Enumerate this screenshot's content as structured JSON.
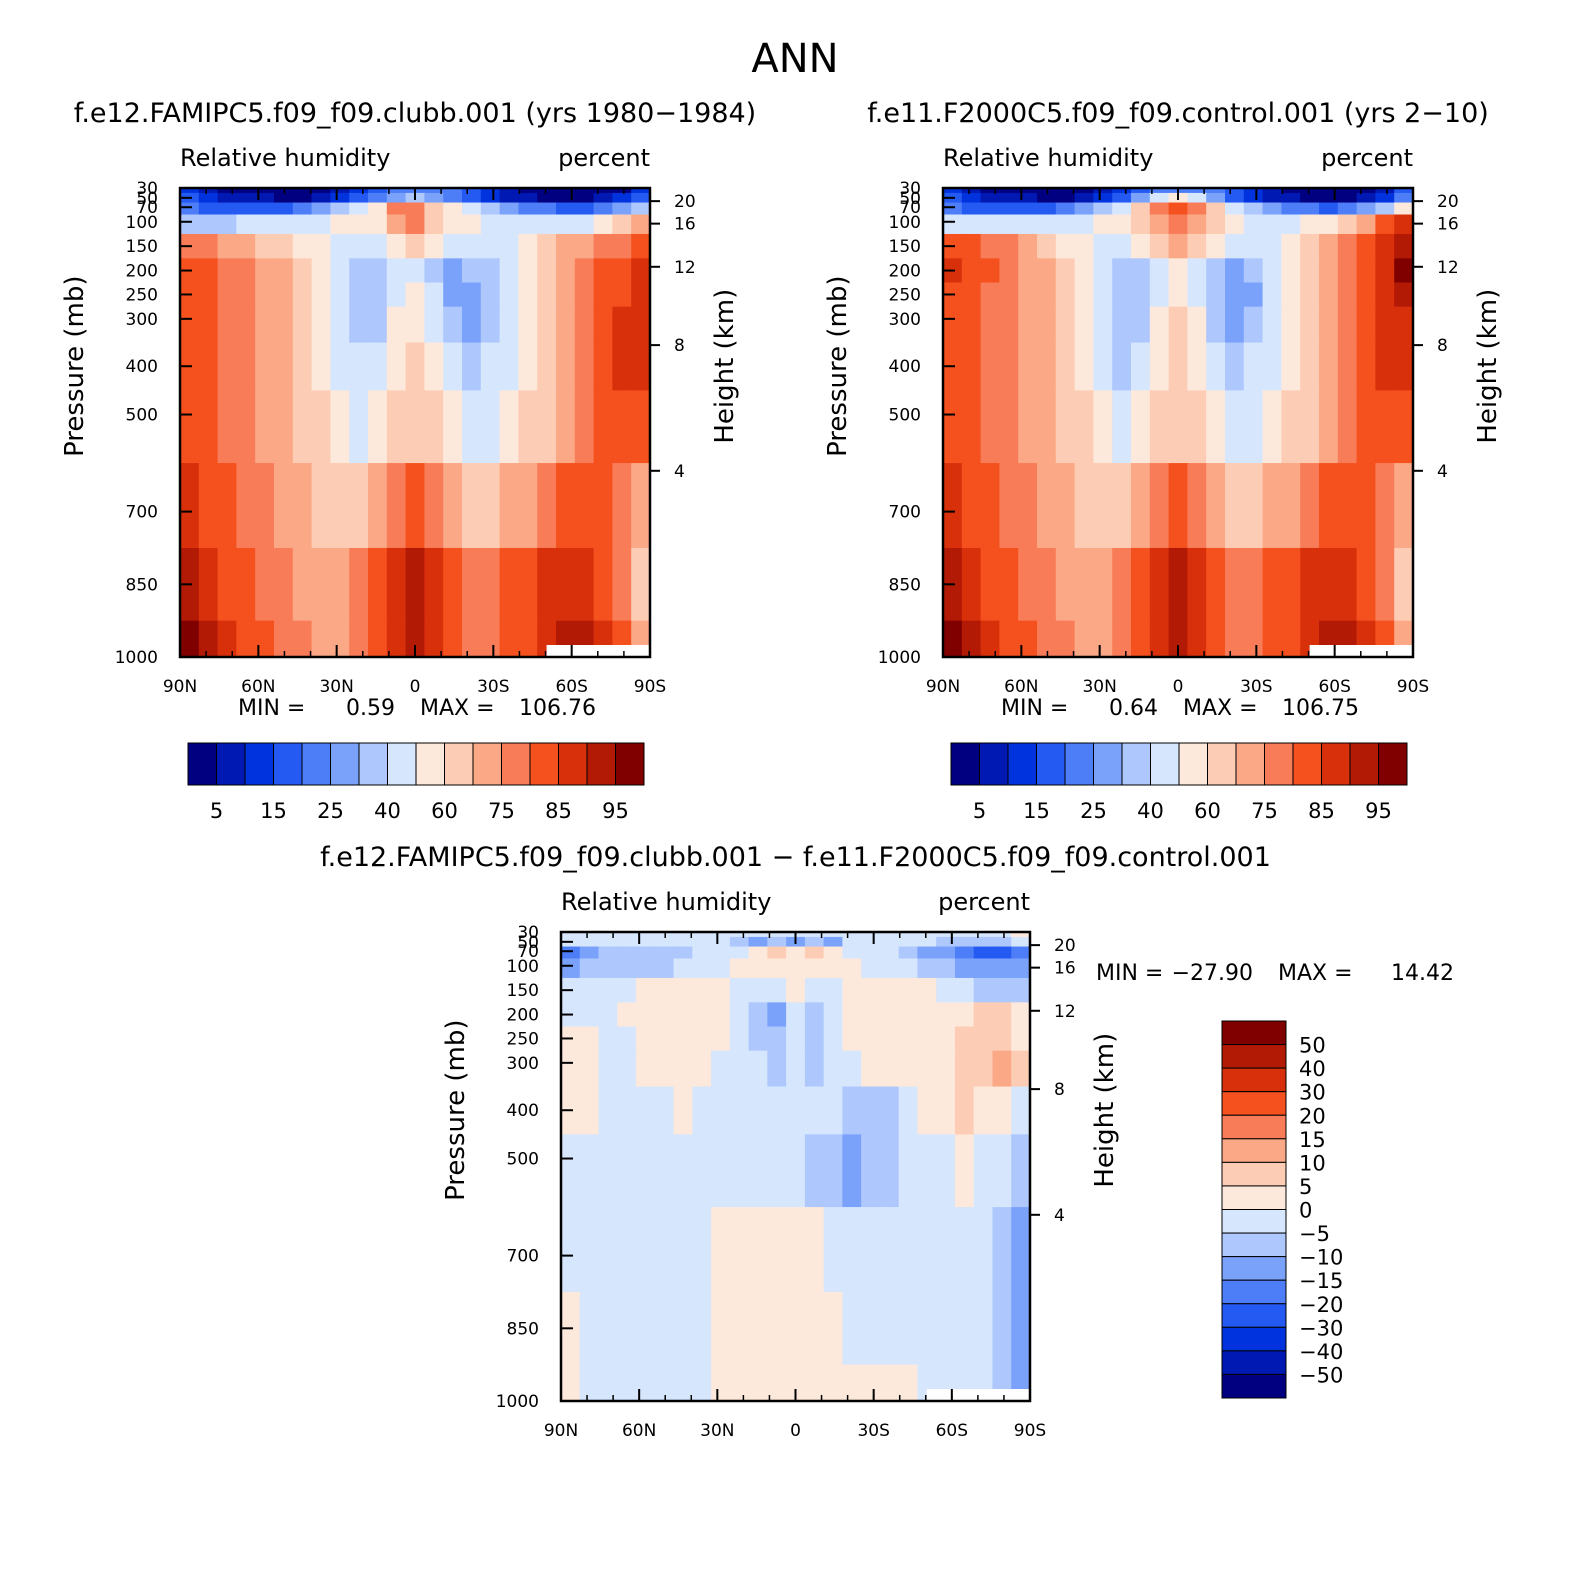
{
  "figure_title": "ANN",
  "colors": {
    "rh_scale": [
      "#000080",
      "#0019b3",
      "#0033dd",
      "#2459f2",
      "#4d7ef8",
      "#7aa2fb",
      "#aec7fd",
      "#d6e6fd",
      "#fde9dc",
      "#fccdb4",
      "#fba886",
      "#f87c58",
      "#f4511e",
      "#d9300c",
      "#b31a06",
      "#800000"
    ],
    "diff_scale": [
      "#000080",
      "#0019b3",
      "#0033dd",
      "#2459f2",
      "#4d7ef8",
      "#7aa2fb",
      "#aec7fd",
      "#d6e6fd",
      "#fde9dc",
      "#fccdb4",
      "#fba886",
      "#f87c58",
      "#f4511e",
      "#d9300c",
      "#b31a06",
      "#800000"
    ]
  },
  "chart_data": [
    {
      "id": "panel-clubb",
      "type": "heatmap",
      "title": "f.e12.FAMIPC5.f09_f09.clubb.001 (yrs 1980−1984)",
      "left_subtitle": "Relative humidity",
      "right_subtitle": "percent",
      "ylabel": "Pressure (mb)",
      "right_label": "Height (km)",
      "x_ticks": [
        "90N",
        "60N",
        "30N",
        "0",
        "30S",
        "60S",
        "90S"
      ],
      "y_ticks": [
        "30",
        "50",
        "70",
        "100",
        "150",
        "200",
        "250",
        "300",
        "400",
        "500",
        "700",
        "850",
        "1000"
      ],
      "height_ticks": [
        "20",
        "16",
        "12",
        "8",
        "4"
      ],
      "min_label": "MIN =",
      "min_value": "0.59",
      "max_label": "MAX =",
      "max_value": "106.76",
      "colorbar_labels": [
        "5",
        "15",
        "25",
        "40",
        "60",
        "75",
        "85",
        "95"
      ],
      "field": [
        [
          2,
          1,
          0,
          0,
          0,
          0,
          0,
          0,
          1,
          2,
          3,
          4,
          4,
          4,
          4,
          3,
          2,
          1,
          0,
          0,
          0,
          0,
          0,
          0,
          2
        ],
        [
          3,
          2,
          1,
          1,
          1,
          0,
          0,
          1,
          2,
          3,
          4,
          5,
          6,
          5,
          4,
          3,
          2,
          1,
          1,
          0,
          0,
          0,
          1,
          2,
          3
        ],
        [
          4,
          3,
          3,
          3,
          3,
          3,
          4,
          5,
          6,
          7,
          8,
          11,
          11,
          9,
          8,
          7,
          6,
          5,
          4,
          4,
          3,
          3,
          4,
          5,
          6
        ],
        [
          6,
          6,
          6,
          7,
          7,
          7,
          7,
          7,
          8,
          8,
          8,
          10,
          11,
          9,
          8,
          8,
          7,
          7,
          7,
          7,
          7,
          7,
          8,
          9,
          10
        ],
        [
          11,
          11,
          10,
          10,
          9,
          9,
          8,
          8,
          7,
          7,
          7,
          8,
          9,
          8,
          7,
          7,
          7,
          7,
          8,
          9,
          10,
          10,
          11,
          11,
          12
        ],
        [
          12,
          12,
          11,
          11,
          10,
          10,
          9,
          8,
          7,
          6,
          6,
          7,
          7,
          6,
          5,
          6,
          6,
          7,
          8,
          9,
          10,
          11,
          12,
          12,
          13
        ],
        [
          12,
          12,
          11,
          11,
          10,
          10,
          9,
          8,
          7,
          6,
          6,
          7,
          8,
          7,
          5,
          5,
          6,
          7,
          8,
          9,
          10,
          11,
          12,
          12,
          13
        ],
        [
          12,
          12,
          11,
          11,
          10,
          10,
          9,
          8,
          7,
          6,
          6,
          8,
          8,
          7,
          6,
          5,
          6,
          7,
          8,
          9,
          10,
          11,
          12,
          13,
          13
        ],
        [
          12,
          12,
          11,
          11,
          10,
          10,
          9,
          8,
          7,
          7,
          7,
          8,
          9,
          8,
          7,
          6,
          7,
          7,
          8,
          9,
          10,
          11,
          12,
          13,
          13
        ],
        [
          12,
          12,
          11,
          11,
          10,
          10,
          9,
          9,
          8,
          7,
          8,
          9,
          9,
          9,
          8,
          7,
          7,
          8,
          9,
          9,
          10,
          11,
          12,
          12,
          12
        ],
        [
          13,
          12,
          12,
          11,
          11,
          10,
          10,
          9,
          9,
          9,
          10,
          11,
          12,
          11,
          10,
          9,
          9,
          10,
          10,
          11,
          12,
          12,
          12,
          11,
          10
        ],
        [
          14,
          13,
          12,
          12,
          11,
          11,
          10,
          10,
          10,
          11,
          12,
          13,
          14,
          13,
          12,
          11,
          11,
          12,
          12,
          13,
          13,
          13,
          12,
          11,
          9
        ],
        [
          15,
          14,
          13,
          12,
          12,
          11,
          11,
          10,
          10,
          11,
          12,
          13,
          14,
          13,
          12,
          11,
          11,
          12,
          12,
          13,
          14,
          14,
          13,
          12,
          10
        ]
      ]
    },
    {
      "id": "panel-control",
      "type": "heatmap",
      "title": "f.e11.F2000C5.f09_f09.control.001 (yrs 2−10)",
      "left_subtitle": "Relative humidity",
      "right_subtitle": "percent",
      "ylabel": "Pressure (mb)",
      "right_label": "Height (km)",
      "x_ticks": [
        "90N",
        "60N",
        "30N",
        "0",
        "30S",
        "60S",
        "90S"
      ],
      "y_ticks": [
        "30",
        "50",
        "70",
        "100",
        "150",
        "200",
        "250",
        "300",
        "400",
        "500",
        "700",
        "850",
        "1000"
      ],
      "height_ticks": [
        "20",
        "16",
        "12",
        "8",
        "4"
      ],
      "min_label": "MIN =",
      "min_value": "0.64",
      "max_label": "MAX =",
      "max_value": "106.75",
      "colorbar_labels": [
        "5",
        "15",
        "25",
        "40",
        "60",
        "75",
        "85",
        "95"
      ],
      "field": [
        [
          2,
          1,
          0,
          0,
          0,
          0,
          0,
          0,
          1,
          2,
          3,
          4,
          4,
          4,
          4,
          3,
          2,
          1,
          0,
          0,
          0,
          0,
          0,
          1,
          3
        ],
        [
          3,
          2,
          1,
          1,
          1,
          0,
          0,
          1,
          2,
          3,
          5,
          7,
          8,
          7,
          5,
          3,
          2,
          1,
          1,
          0,
          0,
          0,
          1,
          2,
          4
        ],
        [
          4,
          3,
          3,
          3,
          3,
          3,
          4,
          5,
          6,
          7,
          9,
          11,
          12,
          11,
          9,
          7,
          6,
          5,
          4,
          4,
          3,
          4,
          5,
          6,
          8
        ],
        [
          7,
          7,
          7,
          7,
          7,
          7,
          7,
          7,
          8,
          8,
          9,
          10,
          11,
          10,
          9,
          8,
          7,
          7,
          7,
          8,
          8,
          9,
          10,
          12,
          13
        ],
        [
          12,
          12,
          11,
          11,
          10,
          9,
          8,
          8,
          7,
          7,
          8,
          9,
          10,
          9,
          8,
          7,
          7,
          7,
          8,
          9,
          10,
          11,
          12,
          13,
          14
        ],
        [
          13,
          12,
          12,
          11,
          10,
          10,
          9,
          8,
          7,
          6,
          6,
          7,
          8,
          7,
          6,
          5,
          6,
          7,
          8,
          9,
          10,
          11,
          12,
          13,
          15
        ],
        [
          12,
          12,
          11,
          11,
          10,
          10,
          9,
          8,
          7,
          6,
          6,
          7,
          8,
          7,
          6,
          5,
          5,
          7,
          8,
          9,
          10,
          11,
          12,
          13,
          14
        ],
        [
          12,
          12,
          11,
          11,
          10,
          10,
          9,
          8,
          7,
          6,
          6,
          8,
          9,
          8,
          6,
          5,
          6,
          7,
          8,
          9,
          10,
          11,
          12,
          13,
          13
        ],
        [
          12,
          12,
          11,
          11,
          10,
          10,
          9,
          8,
          7,
          6,
          7,
          8,
          9,
          8,
          7,
          6,
          7,
          7,
          8,
          9,
          10,
          11,
          12,
          13,
          13
        ],
        [
          12,
          12,
          11,
          11,
          10,
          10,
          9,
          9,
          8,
          7,
          8,
          9,
          9,
          9,
          8,
          7,
          7,
          8,
          9,
          9,
          10,
          11,
          12,
          12,
          12
        ],
        [
          13,
          12,
          12,
          11,
          11,
          10,
          10,
          9,
          9,
          9,
          10,
          11,
          12,
          11,
          10,
          9,
          9,
          10,
          10,
          11,
          12,
          12,
          12,
          11,
          10
        ],
        [
          14,
          13,
          12,
          12,
          11,
          11,
          10,
          10,
          10,
          11,
          12,
          13,
          14,
          13,
          12,
          11,
          11,
          12,
          12,
          13,
          13,
          13,
          12,
          11,
          9
        ],
        [
          15,
          14,
          13,
          12,
          12,
          11,
          11,
          10,
          10,
          11,
          12,
          13,
          14,
          13,
          12,
          11,
          11,
          12,
          12,
          13,
          14,
          14,
          13,
          12,
          10
        ]
      ]
    },
    {
      "id": "panel-diff",
      "type": "heatmap",
      "title": "f.e12.FAMIPC5.f09_f09.clubb.001 − f.e11.F2000C5.f09_f09.control.001",
      "left_subtitle": "Relative humidity",
      "right_subtitle": "percent",
      "ylabel": "Pressure (mb)",
      "right_label": "Height (km)",
      "x_ticks": [
        "90N",
        "60N",
        "30N",
        "0",
        "30S",
        "60S",
        "90S"
      ],
      "y_ticks": [
        "30",
        "50",
        "70",
        "100",
        "150",
        "200",
        "250",
        "300",
        "400",
        "500",
        "700",
        "850",
        "1000"
      ],
      "height_ticks": [
        "20",
        "16",
        "12",
        "8",
        "4"
      ],
      "min_label": "MIN =",
      "min_value": "−27.90",
      "max_label": "MAX =",
      "max_value": "14.42",
      "colorbar_labels": [
        "50",
        "40",
        "30",
        "20",
        "15",
        "10",
        "5",
        "0",
        "−5",
        "−10",
        "−15",
        "−20",
        "−30",
        "−40",
        "−50"
      ],
      "field": [
        [
          7,
          7,
          7,
          7,
          7,
          7,
          7,
          7,
          7,
          7,
          7,
          7,
          7,
          7,
          7,
          7,
          7,
          7,
          7,
          7,
          7,
          7,
          7,
          7,
          8
        ],
        [
          7,
          7,
          7,
          7,
          7,
          7,
          7,
          7,
          7,
          6,
          5,
          6,
          5,
          6,
          5,
          7,
          7,
          7,
          7,
          7,
          6,
          6,
          6,
          6,
          7
        ],
        [
          4,
          5,
          6,
          6,
          6,
          6,
          6,
          7,
          7,
          7,
          8,
          9,
          8,
          9,
          8,
          7,
          7,
          7,
          6,
          5,
          5,
          4,
          3,
          3,
          4
        ],
        [
          5,
          6,
          6,
          6,
          6,
          6,
          7,
          7,
          7,
          8,
          8,
          8,
          8,
          8,
          8,
          8,
          7,
          7,
          7,
          6,
          6,
          5,
          5,
          5,
          5
        ],
        [
          7,
          7,
          7,
          7,
          8,
          8,
          8,
          8,
          8,
          7,
          7,
          7,
          8,
          7,
          7,
          8,
          8,
          8,
          8,
          8,
          7,
          7,
          6,
          6,
          6
        ],
        [
          7,
          7,
          7,
          8,
          8,
          8,
          8,
          8,
          8,
          7,
          6,
          5,
          7,
          6,
          7,
          8,
          8,
          8,
          8,
          8,
          8,
          8,
          9,
          9,
          8
        ],
        [
          8,
          8,
          7,
          7,
          8,
          8,
          8,
          8,
          8,
          7,
          6,
          6,
          7,
          6,
          7,
          8,
          8,
          8,
          8,
          8,
          8,
          9,
          9,
          9,
          8
        ],
        [
          8,
          8,
          7,
          7,
          8,
          8,
          8,
          8,
          7,
          7,
          7,
          6,
          7,
          6,
          7,
          7,
          8,
          8,
          8,
          8,
          8,
          9,
          9,
          10,
          9
        ],
        [
          8,
          8,
          7,
          7,
          7,
          7,
          8,
          7,
          7,
          7,
          7,
          7,
          7,
          7,
          7,
          6,
          6,
          6,
          7,
          8,
          8,
          9,
          8,
          8,
          7
        ],
        [
          7,
          7,
          7,
          7,
          7,
          7,
          7,
          7,
          7,
          7,
          7,
          7,
          7,
          6,
          6,
          5,
          6,
          6,
          7,
          7,
          7,
          8,
          7,
          7,
          6
        ],
        [
          7,
          7,
          7,
          7,
          7,
          7,
          7,
          7,
          8,
          8,
          8,
          8,
          8,
          8,
          7,
          7,
          7,
          7,
          7,
          7,
          7,
          7,
          7,
          6,
          5
        ],
        [
          8,
          7,
          7,
          7,
          7,
          7,
          7,
          7,
          8,
          8,
          8,
          8,
          8,
          8,
          8,
          7,
          7,
          7,
          7,
          7,
          7,
          7,
          7,
          6,
          5
        ],
        [
          8,
          7,
          7,
          7,
          7,
          7,
          7,
          7,
          8,
          8,
          8,
          8,
          8,
          8,
          8,
          8,
          8,
          8,
          8,
          7,
          7,
          7,
          7,
          6,
          5
        ]
      ]
    }
  ]
}
